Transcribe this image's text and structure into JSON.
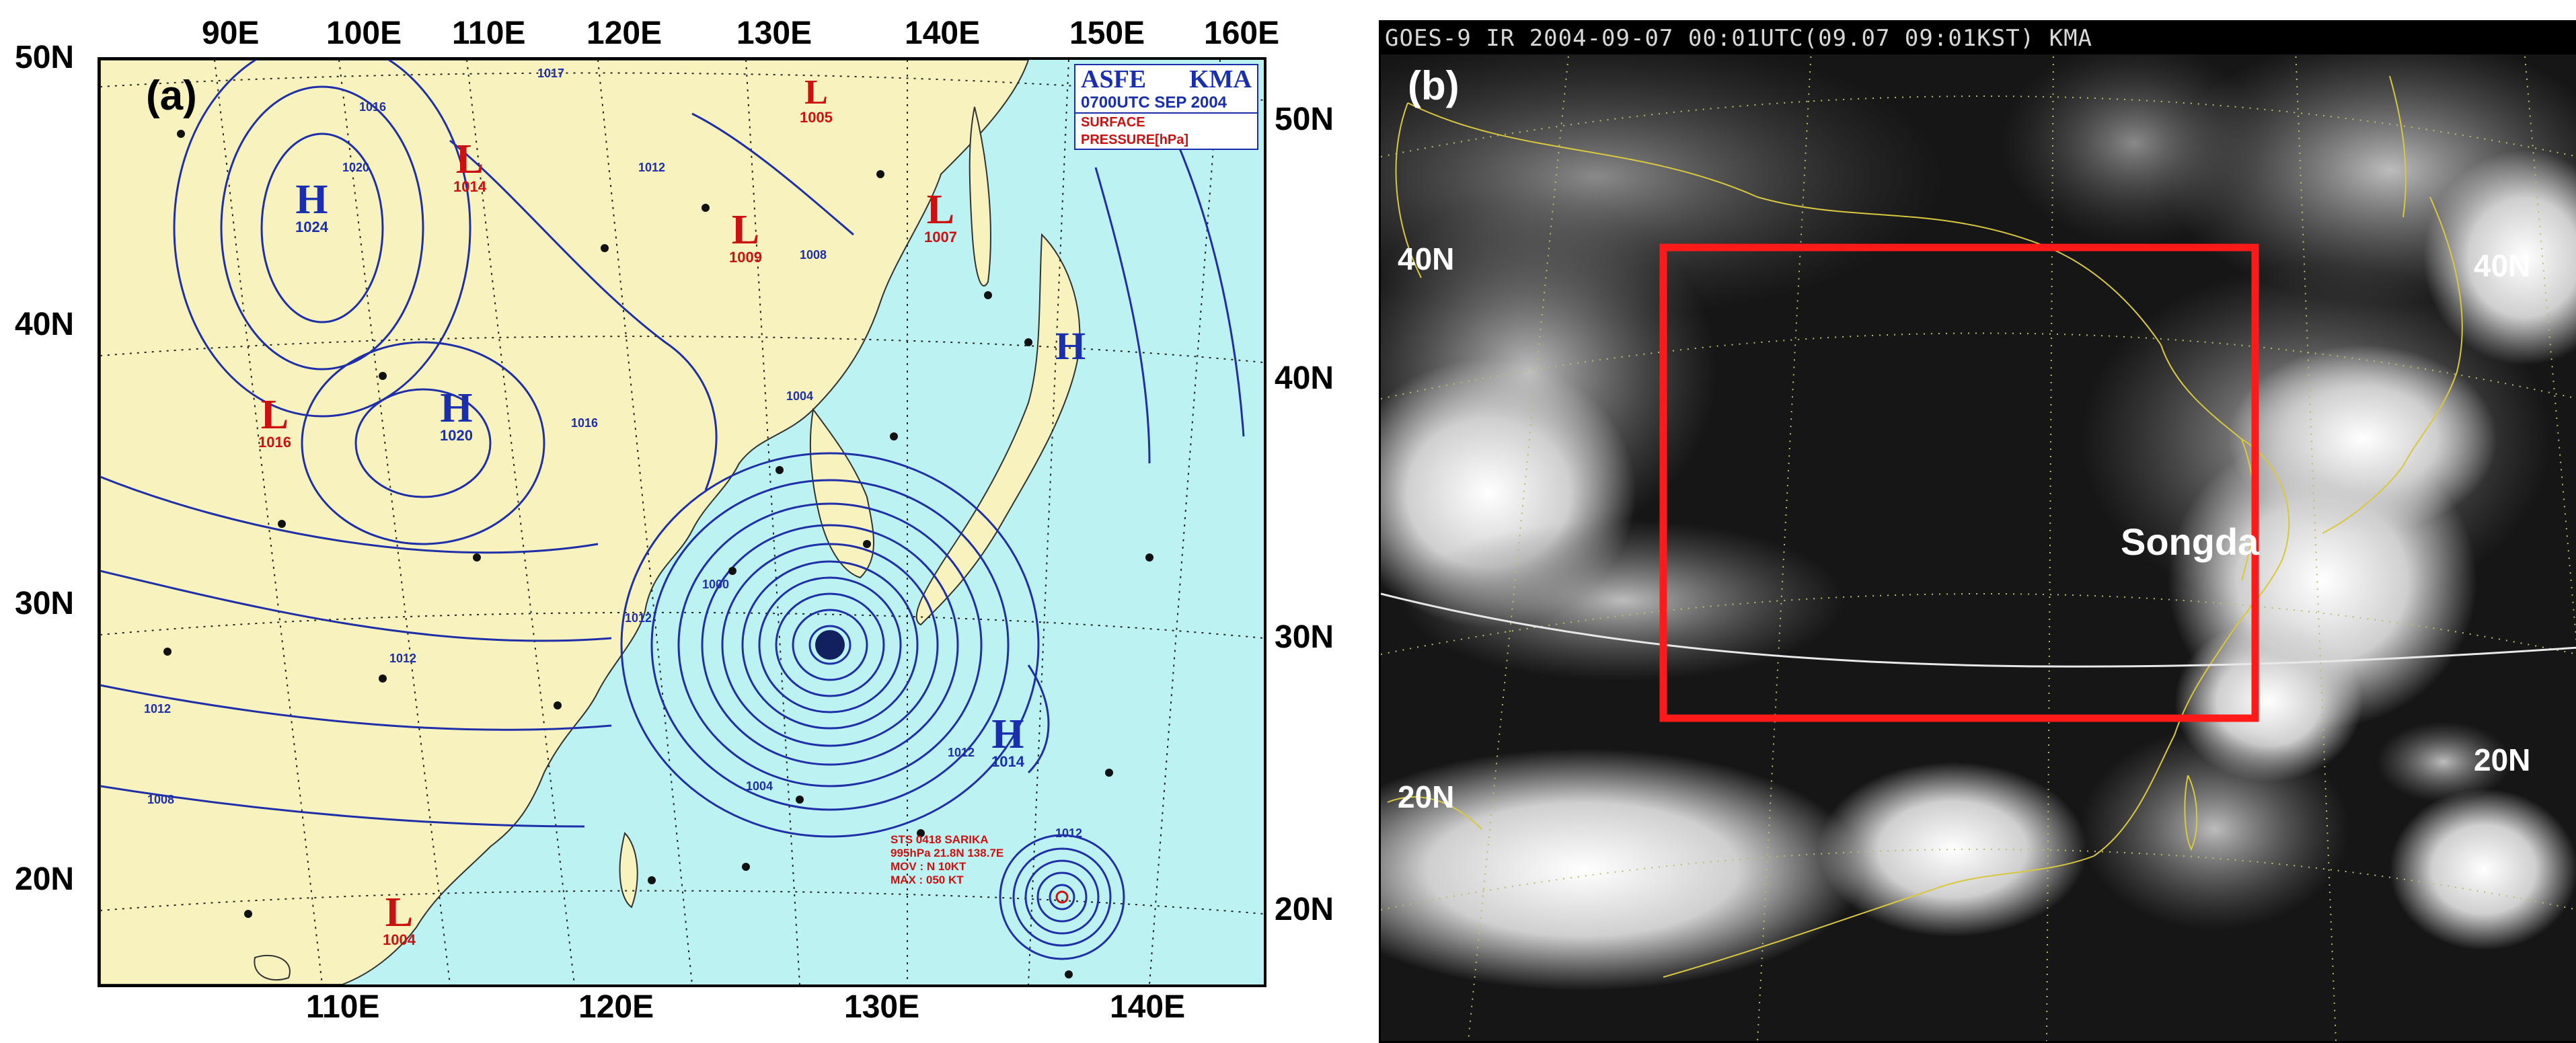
{
  "panel_a": {
    "label": "(a)",
    "title_box": {
      "line1_left": "ASFE",
      "line1_right": "KMA",
      "line2": "0700UTC SEP 2004",
      "line3": "SURFACE PRESSURE[hPa]"
    },
    "top_lon_labels": [
      "90E",
      "100E",
      "110E",
      "120E",
      "130E",
      "140E",
      "150E",
      "160E"
    ],
    "bottom_lon_labels": [
      "110E",
      "120E",
      "130E",
      "140E"
    ],
    "left_lat_labels": [
      "50N",
      "40N",
      "30N",
      "20N"
    ],
    "right_lat_labels": [
      "50N",
      "40N",
      "30N",
      "20N"
    ],
    "pressure_centers": [
      {
        "type": "L",
        "value": "1014"
      },
      {
        "type": "L",
        "value": "1009"
      },
      {
        "type": "L",
        "value": "1007"
      },
      {
        "type": "L",
        "value": "1016"
      },
      {
        "type": "L",
        "value": "1004"
      },
      {
        "type": "L",
        "value": "1005"
      },
      {
        "type": "H",
        "value": "1024"
      },
      {
        "type": "H",
        "value": "1020"
      },
      {
        "type": "H",
        "value": "1014"
      },
      {
        "type": "H",
        "value": ""
      }
    ],
    "isobar_labels": [
      "1016",
      "1017",
      "1020",
      "1012",
      "1008",
      "1004",
      "1000",
      "1012",
      "1012",
      "1016",
      "1008",
      "1012",
      "1012",
      "1004",
      "1012"
    ],
    "storm_note": [
      "STS 0418 SARIKA",
      "995hPa 21.8N 138.7E",
      "MOV : N 10KT",
      "MAX : 050 KT"
    ],
    "colors": {
      "land": "#f8f3be",
      "sea": "#bdf2f2",
      "isobar": "#1f2fa8",
      "low": "#cc1111",
      "high": "#1a2fb0"
    }
  },
  "panel_b": {
    "label": "(b)",
    "header": "GOES-9 IR 2004-09-07 00:01UTC(09.07 09:01KST) KMA",
    "lat_labels_left": [
      "40N",
      "20N"
    ],
    "lat_labels_right": [
      "40N",
      "20N"
    ],
    "storm_name": "Songda",
    "box_color": "#ff1a1a"
  }
}
